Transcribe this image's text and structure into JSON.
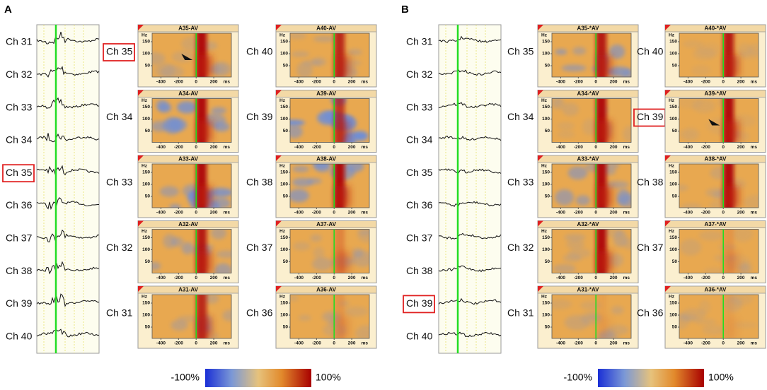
{
  "panels": [
    {
      "label": "A",
      "traces": [
        {
          "label": "Ch 31"
        },
        {
          "label": "Ch 32"
        },
        {
          "label": "Ch 33"
        },
        {
          "label": "Ch 34"
        },
        {
          "label": "Ch 35",
          "boxed": true
        },
        {
          "label": "Ch 36"
        },
        {
          "label": "Ch 37"
        },
        {
          "label": "Ch 38"
        },
        {
          "label": "Ch 39"
        },
        {
          "label": "Ch 40"
        }
      ],
      "spectrograms": [
        {
          "channel": "Ch 35",
          "title": "A35-AV",
          "boxed": true
        },
        {
          "channel": "Ch 34",
          "title": "A34-AV"
        },
        {
          "channel": "Ch 33",
          "title": "A33-AV"
        },
        {
          "channel": "Ch 32",
          "title": "A32-AV"
        },
        {
          "channel": "Ch 31",
          "title": "A31-AV"
        },
        {
          "channel": "Ch 40",
          "title": "A40-AV"
        },
        {
          "channel": "Ch 39",
          "title": "A39-AV"
        },
        {
          "channel": "Ch 38",
          "title": "A38-AV"
        },
        {
          "channel": "Ch 37",
          "title": "A37-AV"
        },
        {
          "channel": "Ch 36",
          "title": "A36-AV"
        }
      ]
    },
    {
      "label": "B",
      "traces": [
        {
          "label": "Ch 31"
        },
        {
          "label": "Ch 32"
        },
        {
          "label": "Ch 33"
        },
        {
          "label": "Ch 34"
        },
        {
          "label": "Ch 35"
        },
        {
          "label": "Ch 36"
        },
        {
          "label": "Ch 37"
        },
        {
          "label": "Ch 38"
        },
        {
          "label": "Ch 39",
          "boxed": true
        },
        {
          "label": "Ch 40"
        }
      ],
      "spectrograms": [
        {
          "channel": "Ch 35",
          "title": "A35-*AV"
        },
        {
          "channel": "Ch 34",
          "title": "A34-*AV"
        },
        {
          "channel": "Ch 33",
          "title": "A33-*AV"
        },
        {
          "channel": "Ch 32",
          "title": "A32-*AV"
        },
        {
          "channel": "Ch 31",
          "title": "A31-*AV"
        },
        {
          "channel": "Ch 40",
          "title": "A40-*AV"
        },
        {
          "channel": "Ch 39",
          "title": "A39-*AV",
          "boxed": true
        },
        {
          "channel": "Ch 38",
          "title": "A38-*AV"
        },
        {
          "channel": "Ch 37",
          "title": "A37-*AV"
        },
        {
          "channel": "Ch 36",
          "title": "A36-*AV"
        }
      ]
    }
  ],
  "spectrogram_axes": {
    "y_unit": "Hz",
    "yticks": [
      "150",
      "100",
      "50"
    ],
    "x_unit": "ms",
    "xticks": [
      "-400",
      "-200",
      "0",
      "200"
    ]
  },
  "colorbar": {
    "min_label": "-100%",
    "max_label": "100%"
  }
}
